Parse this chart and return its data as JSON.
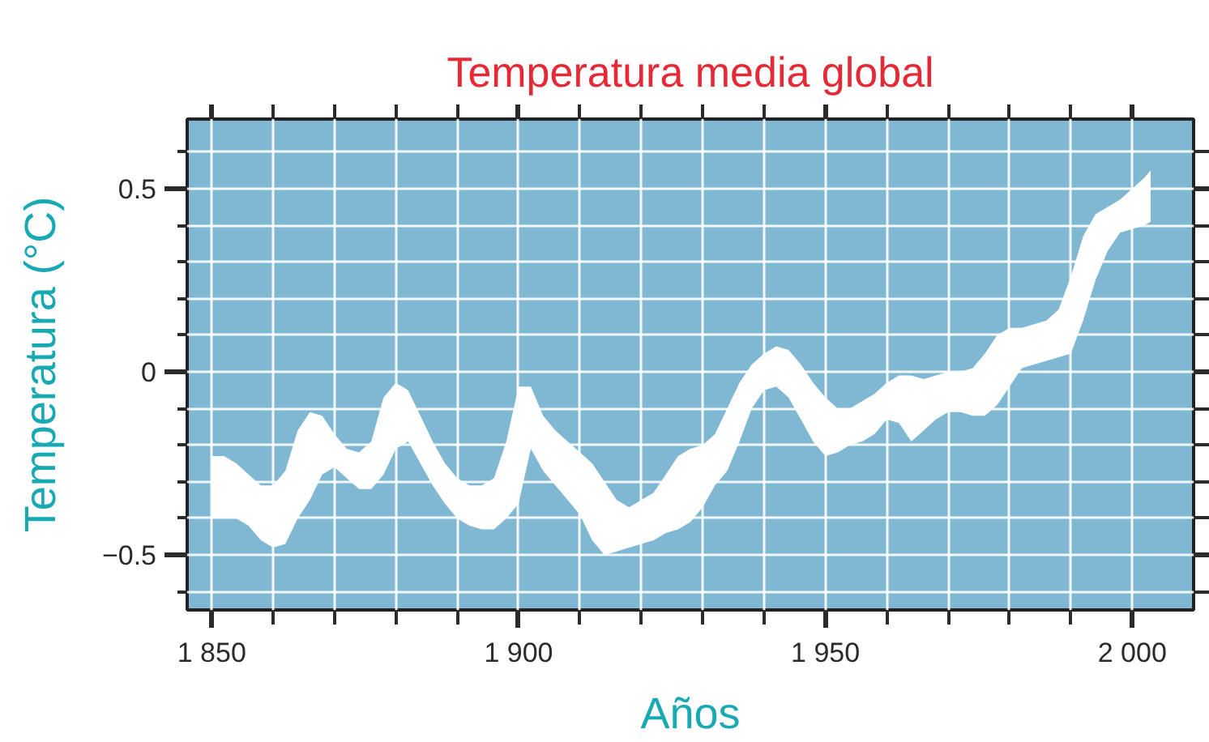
{
  "chart_data": {
    "type": "line",
    "title": "Temperatura media global",
    "xlabel": "Años",
    "ylabel": "Temperatura (°C)",
    "x": [
      1850,
      1852,
      1854,
      1856,
      1858,
      1860,
      1862,
      1864,
      1866,
      1868,
      1870,
      1872,
      1874,
      1876,
      1878,
      1880,
      1882,
      1884,
      1886,
      1888,
      1890,
      1892,
      1894,
      1896,
      1898,
      1900,
      1902,
      1904,
      1906,
      1908,
      1910,
      1912,
      1914,
      1916,
      1918,
      1920,
      1922,
      1924,
      1926,
      1928,
      1930,
      1932,
      1934,
      1936,
      1938,
      1940,
      1942,
      1944,
      1946,
      1948,
      1950,
      1952,
      1954,
      1956,
      1958,
      1960,
      1962,
      1964,
      1966,
      1968,
      1970,
      1972,
      1974,
      1976,
      1978,
      1980,
      1982,
      1984,
      1986,
      1988,
      1990,
      1992,
      1994,
      1996,
      1998,
      2000,
      2002,
      2003
    ],
    "series": [
      {
        "color": "#ffffff",
        "values": [
          null,
          null,
          null,
          null,
          null,
          null,
          null,
          null,
          null,
          null,
          null,
          null,
          null,
          null,
          null,
          null,
          null,
          null,
          null,
          null,
          null,
          null,
          null,
          null,
          null,
          null,
          null,
          null,
          null,
          null,
          null,
          null,
          null,
          null,
          null,
          null,
          null,
          null,
          null,
          null,
          null,
          null,
          null,
          null,
          null,
          null,
          null,
          null,
          null,
          null,
          null,
          null,
          null,
          null,
          null,
          null,
          null,
          null,
          null,
          null,
          null,
          null,
          null,
          null,
          null,
          null,
          null,
          null,
          null,
          null,
          null,
          null,
          null,
          null,
          null,
          null,
          null,
          null
        ],
        "upper": [
          -0.23,
          -0.23,
          -0.25,
          -0.28,
          -0.31,
          -0.31,
          -0.27,
          -0.16,
          -0.11,
          -0.12,
          -0.17,
          -0.21,
          -0.22,
          -0.19,
          -0.07,
          -0.03,
          -0.05,
          -0.12,
          -0.19,
          -0.25,
          -0.29,
          -0.31,
          -0.31,
          -0.29,
          -0.19,
          -0.04,
          -0.04,
          -0.12,
          -0.16,
          -0.19,
          -0.22,
          -0.25,
          -0.3,
          -0.35,
          -0.37,
          -0.35,
          -0.33,
          -0.28,
          -0.23,
          -0.21,
          -0.2,
          -0.17,
          -0.1,
          -0.03,
          0.02,
          0.05,
          0.07,
          0.06,
          0.02,
          -0.03,
          -0.07,
          -0.1,
          -0.1,
          -0.08,
          -0.06,
          -0.03,
          -0.01,
          -0.01,
          -0.02,
          -0.01,
          0,
          0,
          0.01,
          0.05,
          0.1,
          0.12,
          0.12,
          0.13,
          0.14,
          0.17,
          0.26,
          0.37,
          0.43,
          0.45,
          0.47,
          0.5,
          0.53,
          0.55
        ],
        "lower": [
          -0.4,
          -0.4,
          -0.4,
          -0.42,
          -0.46,
          -0.48,
          -0.47,
          -0.4,
          -0.35,
          -0.28,
          -0.26,
          -0.29,
          -0.32,
          -0.32,
          -0.28,
          -0.21,
          -0.19,
          -0.25,
          -0.31,
          -0.36,
          -0.4,
          -0.42,
          -0.43,
          -0.43,
          -0.4,
          -0.36,
          -0.21,
          -0.27,
          -0.31,
          -0.35,
          -0.39,
          -0.46,
          -0.5,
          -0.49,
          -0.48,
          -0.47,
          -0.46,
          -0.44,
          -0.43,
          -0.41,
          -0.37,
          -0.31,
          -0.27,
          -0.19,
          -0.1,
          -0.05,
          -0.04,
          -0.07,
          -0.13,
          -0.19,
          -0.23,
          -0.22,
          -0.2,
          -0.19,
          -0.17,
          -0.13,
          -0.14,
          -0.19,
          -0.16,
          -0.13,
          -0.11,
          -0.11,
          -0.12,
          -0.12,
          -0.09,
          -0.04,
          0.01,
          0.02,
          0.03,
          0.04,
          0.05,
          0.14,
          0.25,
          0.33,
          0.38,
          0.39,
          0.4,
          0.41
        ]
      }
    ],
    "xlim": [
      1846,
      2010
    ],
    "ylim": [
      -0.65,
      0.69
    ],
    "xticks": [
      {
        "value": 1850,
        "label": "1 850"
      },
      {
        "value": 1860,
        "label": null
      },
      {
        "value": 1870,
        "label": null
      },
      {
        "value": 1880,
        "label": null
      },
      {
        "value": 1890,
        "label": null
      },
      {
        "value": 1900,
        "label": "1 900"
      },
      {
        "value": 1910,
        "label": null
      },
      {
        "value": 1920,
        "label": null
      },
      {
        "value": 1930,
        "label": null
      },
      {
        "value": 1940,
        "label": null
      },
      {
        "value": 1950,
        "label": "1 950"
      },
      {
        "value": 1960,
        "label": null
      },
      {
        "value": 1970,
        "label": null
      },
      {
        "value": 1980,
        "label": null
      },
      {
        "value": 1990,
        "label": null
      },
      {
        "value": 2000,
        "label": "2 000"
      }
    ],
    "yticks": [
      {
        "value": -0.6,
        "label": null
      },
      {
        "value": -0.5,
        "label": "−0.5"
      },
      {
        "value": -0.4,
        "label": null
      },
      {
        "value": -0.3,
        "label": null
      },
      {
        "value": -0.2,
        "label": null
      },
      {
        "value": -0.1,
        "label": null
      },
      0,
      {
        "value": 0.1,
        "label": null
      },
      {
        "value": 0.2,
        "label": null
      },
      {
        "value": 0.3,
        "label": null
      },
      {
        "value": 0.4,
        "label": null
      },
      0.5,
      {
        "value": 0.6,
        "label": null
      }
    ],
    "grid": true
  }
}
